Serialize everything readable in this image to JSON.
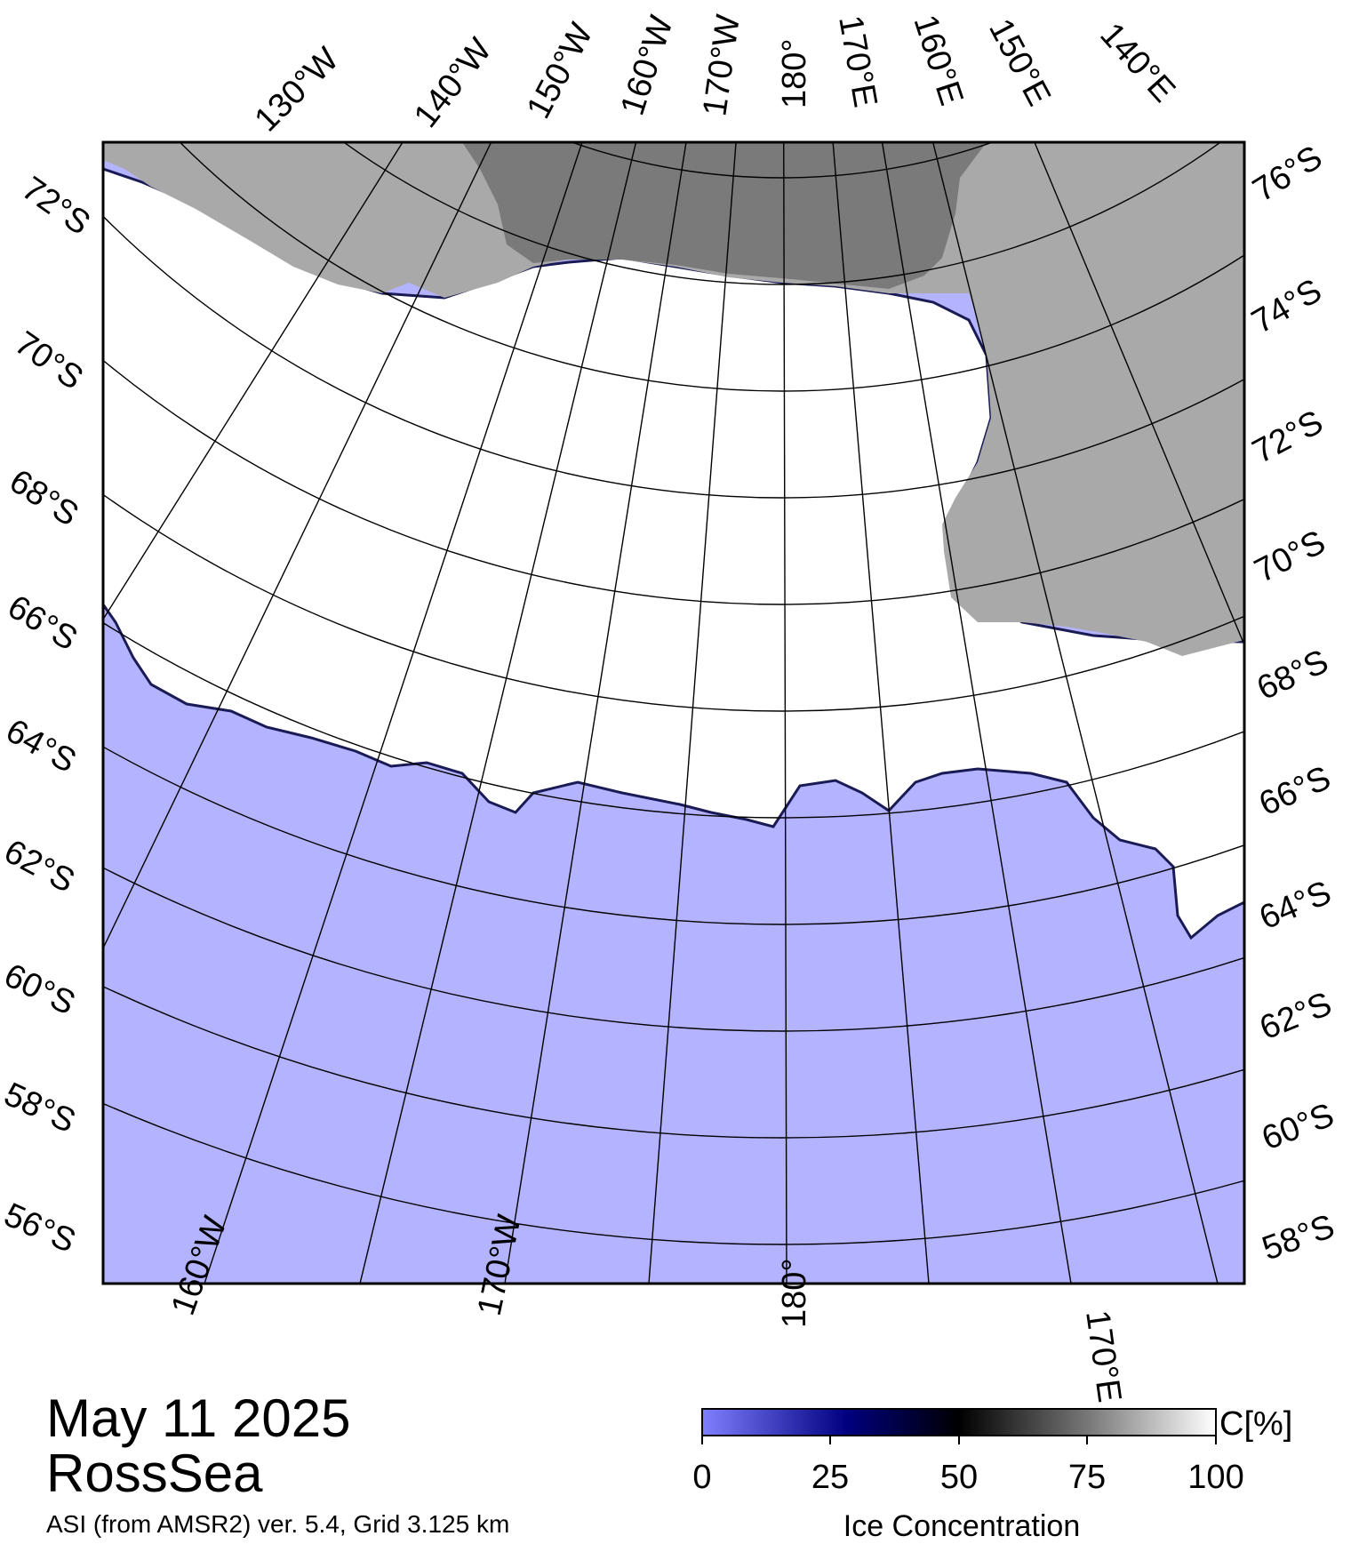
{
  "map": {
    "date": "May 11 2025",
    "region": "RossSea",
    "source": "ASI (from AMSR2) ver. 5.4,  Grid 3.125 km",
    "lat_labels_left": [
      "72°S",
      "70°S",
      "68°S",
      "66°S",
      "64°S",
      "62°S",
      "60°S",
      "58°S",
      "56°S"
    ],
    "lat_labels_right": [
      "76°S",
      "74°S",
      "72°S",
      "70°S",
      "68°S",
      "66°S",
      "64°S",
      "62°S",
      "60°S",
      "58°S"
    ],
    "lon_labels_top": [
      "130°W",
      "140°W",
      "150°W",
      "160°W",
      "170°W",
      "180°",
      "170°E",
      "160°E",
      "150°E",
      "140°E"
    ],
    "lon_labels_bottom": [
      "160°W",
      "170°W",
      "180°",
      "170°E"
    ],
    "colors": {
      "ocean": "#b3b3ff",
      "land": "#a9a9a9",
      "ice_shelf": "#7a7a7a",
      "ice": "#ffffff"
    }
  },
  "colorbar": {
    "ticks": [
      "0",
      "25",
      "50",
      "75",
      "100"
    ],
    "unit": "C[%]",
    "title": "Ice Concentration"
  }
}
